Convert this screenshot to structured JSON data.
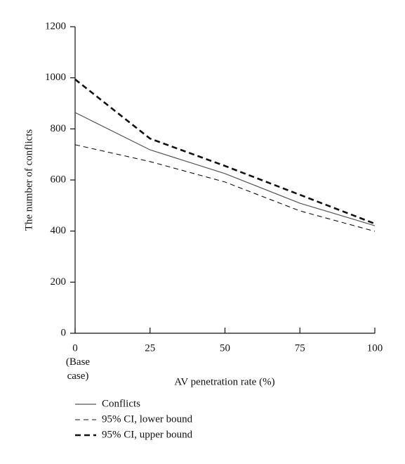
{
  "chart_data": {
    "type": "line",
    "x_label": "AV penetration rate (%)",
    "y_label": "The number of conflicts",
    "x_note": "(Base case)",
    "x": [
      0,
      25,
      50,
      75,
      100
    ],
    "series": [
      {
        "name": "Conflicts",
        "color": "#555555",
        "style": "solid",
        "width": 1.2,
        "values": [
          864,
          718,
          625,
          509,
          421
        ]
      },
      {
        "name": "95% CI, lower bound",
        "color": "#111111",
        "style": "dashed",
        "width": 1.1,
        "values": [
          738,
          672,
          592,
          479,
          399
        ]
      },
      {
        "name": "95% CI, upper bound",
        "color": "#111111",
        "style": "dashed",
        "width": 2.6,
        "values": [
          994,
          762,
          655,
          542,
          429
        ]
      }
    ],
    "xlim": [
      0,
      100
    ],
    "xticks": [
      0,
      25,
      50,
      75,
      100
    ],
    "ylim": [
      0,
      1200
    ],
    "yticks": [
      0,
      200,
      400,
      600,
      800,
      1000,
      1200
    ],
    "grid": false
  }
}
